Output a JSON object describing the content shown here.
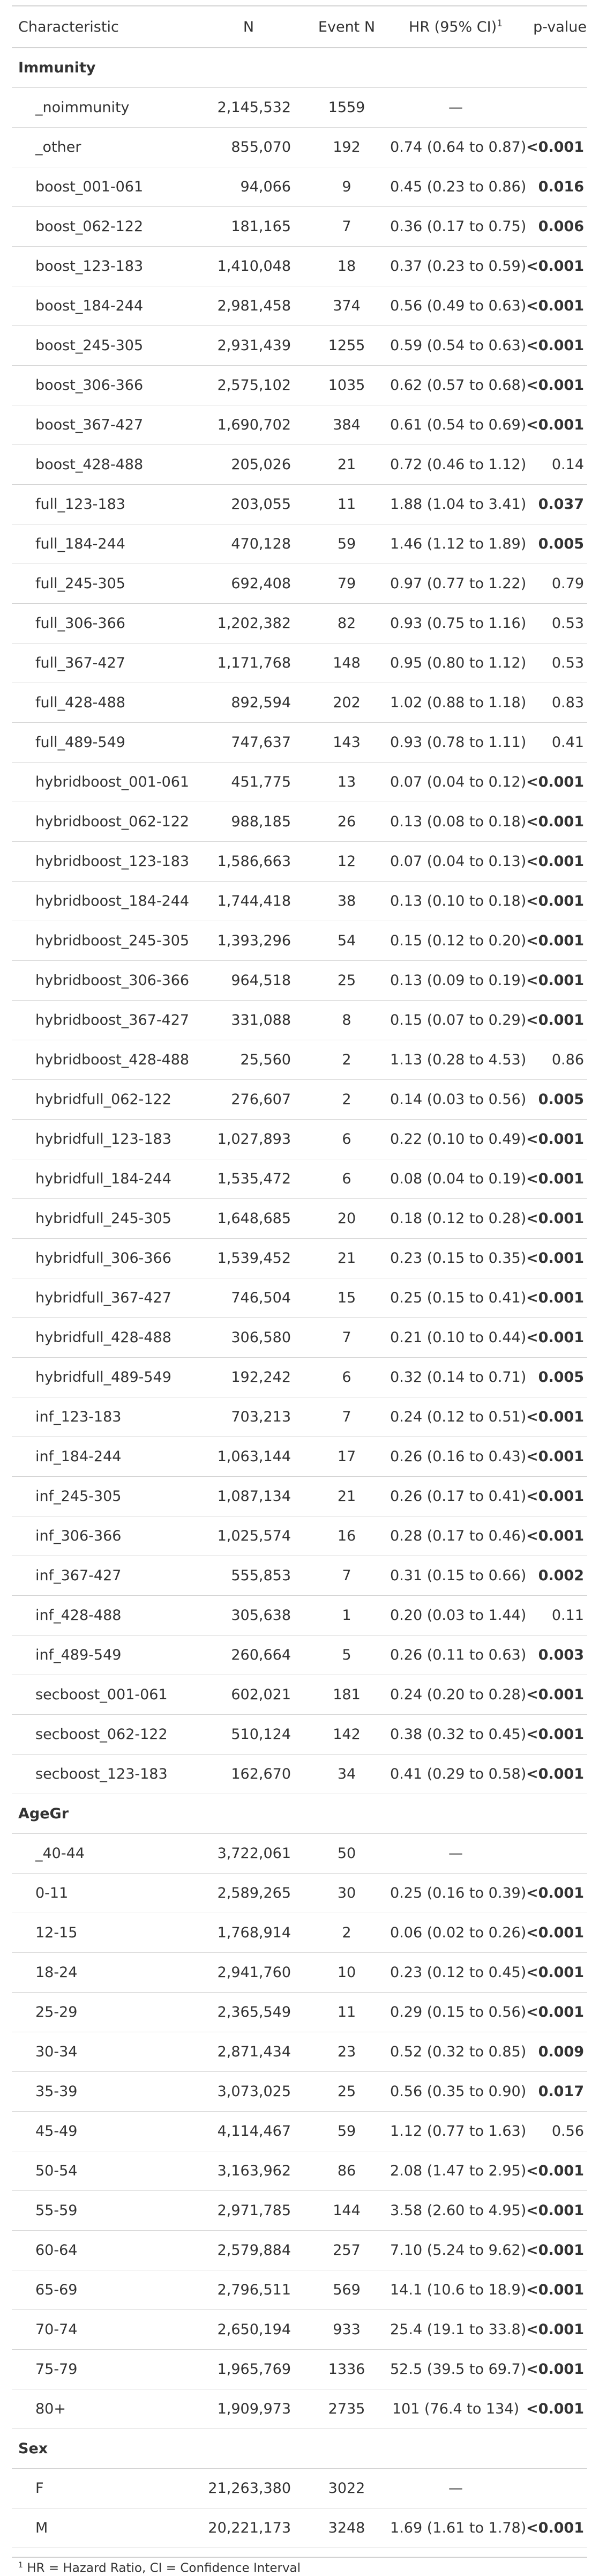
{
  "headers": {
    "characteristic": "Characteristic",
    "n": "N",
    "event_n": "Event N",
    "hr_ci": "HR (95% CI)",
    "hr_ci_mark": "1",
    "p_value": "p-value"
  },
  "groups": [
    {
      "label": "Immunity",
      "rows": [
        {
          "level": "_noimmunity",
          "n": "2,145,532",
          "events": "1559",
          "hr": "—",
          "p": "",
          "sig": false
        },
        {
          "level": "_other",
          "n": "855,070",
          "events": "192",
          "hr": "0.74 (0.64 to 0.87)",
          "p": "<0.001",
          "sig": true
        },
        {
          "level": "boost_001-061",
          "n": "94,066",
          "events": "9",
          "hr": "0.45 (0.23 to 0.86)",
          "p": "0.016",
          "sig": true
        },
        {
          "level": "boost_062-122",
          "n": "181,165",
          "events": "7",
          "hr": "0.36 (0.17 to 0.75)",
          "p": "0.006",
          "sig": true
        },
        {
          "level": "boost_123-183",
          "n": "1,410,048",
          "events": "18",
          "hr": "0.37 (0.23 to 0.59)",
          "p": "<0.001",
          "sig": true
        },
        {
          "level": "boost_184-244",
          "n": "2,981,458",
          "events": "374",
          "hr": "0.56 (0.49 to 0.63)",
          "p": "<0.001",
          "sig": true
        },
        {
          "level": "boost_245-305",
          "n": "2,931,439",
          "events": "1255",
          "hr": "0.59 (0.54 to 0.63)",
          "p": "<0.001",
          "sig": true
        },
        {
          "level": "boost_306-366",
          "n": "2,575,102",
          "events": "1035",
          "hr": "0.62 (0.57 to 0.68)",
          "p": "<0.001",
          "sig": true
        },
        {
          "level": "boost_367-427",
          "n": "1,690,702",
          "events": "384",
          "hr": "0.61 (0.54 to 0.69)",
          "p": "<0.001",
          "sig": true
        },
        {
          "level": "boost_428-488",
          "n": "205,026",
          "events": "21",
          "hr": "0.72 (0.46 to 1.12)",
          "p": "0.14",
          "sig": false
        },
        {
          "level": "full_123-183",
          "n": "203,055",
          "events": "11",
          "hr": "1.88 (1.04 to 3.41)",
          "p": "0.037",
          "sig": true
        },
        {
          "level": "full_184-244",
          "n": "470,128",
          "events": "59",
          "hr": "1.46 (1.12 to 1.89)",
          "p": "0.005",
          "sig": true
        },
        {
          "level": "full_245-305",
          "n": "692,408",
          "events": "79",
          "hr": "0.97 (0.77 to 1.22)",
          "p": "0.79",
          "sig": false
        },
        {
          "level": "full_306-366",
          "n": "1,202,382",
          "events": "82",
          "hr": "0.93 (0.75 to 1.16)",
          "p": "0.53",
          "sig": false
        },
        {
          "level": "full_367-427",
          "n": "1,171,768",
          "events": "148",
          "hr": "0.95 (0.80 to 1.12)",
          "p": "0.53",
          "sig": false
        },
        {
          "level": "full_428-488",
          "n": "892,594",
          "events": "202",
          "hr": "1.02 (0.88 to 1.18)",
          "p": "0.83",
          "sig": false
        },
        {
          "level": "full_489-549",
          "n": "747,637",
          "events": "143",
          "hr": "0.93 (0.78 to 1.11)",
          "p": "0.41",
          "sig": false
        },
        {
          "level": "hybridboost_001-061",
          "n": "451,775",
          "events": "13",
          "hr": "0.07 (0.04 to 0.12)",
          "p": "<0.001",
          "sig": true
        },
        {
          "level": "hybridboost_062-122",
          "n": "988,185",
          "events": "26",
          "hr": "0.13 (0.08 to 0.18)",
          "p": "<0.001",
          "sig": true
        },
        {
          "level": "hybridboost_123-183",
          "n": "1,586,663",
          "events": "12",
          "hr": "0.07 (0.04 to 0.13)",
          "p": "<0.001",
          "sig": true
        },
        {
          "level": "hybridboost_184-244",
          "n": "1,744,418",
          "events": "38",
          "hr": "0.13 (0.10 to 0.18)",
          "p": "<0.001",
          "sig": true
        },
        {
          "level": "hybridboost_245-305",
          "n": "1,393,296",
          "events": "54",
          "hr": "0.15 (0.12 to 0.20)",
          "p": "<0.001",
          "sig": true
        },
        {
          "level": "hybridboost_306-366",
          "n": "964,518",
          "events": "25",
          "hr": "0.13 (0.09 to 0.19)",
          "p": "<0.001",
          "sig": true
        },
        {
          "level": "hybridboost_367-427",
          "n": "331,088",
          "events": "8",
          "hr": "0.15 (0.07 to 0.29)",
          "p": "<0.001",
          "sig": true
        },
        {
          "level": "hybridboost_428-488",
          "n": "25,560",
          "events": "2",
          "hr": "1.13 (0.28 to 4.53)",
          "p": "0.86",
          "sig": false
        },
        {
          "level": "hybridfull_062-122",
          "n": "276,607",
          "events": "2",
          "hr": "0.14 (0.03 to 0.56)",
          "p": "0.005",
          "sig": true
        },
        {
          "level": "hybridfull_123-183",
          "n": "1,027,893",
          "events": "6",
          "hr": "0.22 (0.10 to 0.49)",
          "p": "<0.001",
          "sig": true
        },
        {
          "level": "hybridfull_184-244",
          "n": "1,535,472",
          "events": "6",
          "hr": "0.08 (0.04 to 0.19)",
          "p": "<0.001",
          "sig": true
        },
        {
          "level": "hybridfull_245-305",
          "n": "1,648,685",
          "events": "20",
          "hr": "0.18 (0.12 to 0.28)",
          "p": "<0.001",
          "sig": true
        },
        {
          "level": "hybridfull_306-366",
          "n": "1,539,452",
          "events": "21",
          "hr": "0.23 (0.15 to 0.35)",
          "p": "<0.001",
          "sig": true
        },
        {
          "level": "hybridfull_367-427",
          "n": "746,504",
          "events": "15",
          "hr": "0.25 (0.15 to 0.41)",
          "p": "<0.001",
          "sig": true
        },
        {
          "level": "hybridfull_428-488",
          "n": "306,580",
          "events": "7",
          "hr": "0.21 (0.10 to 0.44)",
          "p": "<0.001",
          "sig": true
        },
        {
          "level": "hybridfull_489-549",
          "n": "192,242",
          "events": "6",
          "hr": "0.32 (0.14 to 0.71)",
          "p": "0.005",
          "sig": true
        },
        {
          "level": "inf_123-183",
          "n": "703,213",
          "events": "7",
          "hr": "0.24 (0.12 to 0.51)",
          "p": "<0.001",
          "sig": true
        },
        {
          "level": "inf_184-244",
          "n": "1,063,144",
          "events": "17",
          "hr": "0.26 (0.16 to 0.43)",
          "p": "<0.001",
          "sig": true
        },
        {
          "level": "inf_245-305",
          "n": "1,087,134",
          "events": "21",
          "hr": "0.26 (0.17 to 0.41)",
          "p": "<0.001",
          "sig": true
        },
        {
          "level": "inf_306-366",
          "n": "1,025,574",
          "events": "16",
          "hr": "0.28 (0.17 to 0.46)",
          "p": "<0.001",
          "sig": true
        },
        {
          "level": "inf_367-427",
          "n": "555,853",
          "events": "7",
          "hr": "0.31 (0.15 to 0.66)",
          "p": "0.002",
          "sig": true
        },
        {
          "level": "inf_428-488",
          "n": "305,638",
          "events": "1",
          "hr": "0.20 (0.03 to 1.44)",
          "p": "0.11",
          "sig": false
        },
        {
          "level": "inf_489-549",
          "n": "260,664",
          "events": "5",
          "hr": "0.26 (0.11 to 0.63)",
          "p": "0.003",
          "sig": true
        },
        {
          "level": "secboost_001-061",
          "n": "602,021",
          "events": "181",
          "hr": "0.24 (0.20 to 0.28)",
          "p": "<0.001",
          "sig": true
        },
        {
          "level": "secboost_062-122",
          "n": "510,124",
          "events": "142",
          "hr": "0.38 (0.32 to 0.45)",
          "p": "<0.001",
          "sig": true
        },
        {
          "level": "secboost_123-183",
          "n": "162,670",
          "events": "34",
          "hr": "0.41 (0.29 to 0.58)",
          "p": "<0.001",
          "sig": true
        }
      ]
    },
    {
      "label": "AgeGr",
      "rows": [
        {
          "level": "_40-44",
          "n": "3,722,061",
          "events": "50",
          "hr": "—",
          "p": "",
          "sig": false
        },
        {
          "level": "0-11",
          "n": "2,589,265",
          "events": "30",
          "hr": "0.25 (0.16 to 0.39)",
          "p": "<0.001",
          "sig": true
        },
        {
          "level": "12-15",
          "n": "1,768,914",
          "events": "2",
          "hr": "0.06 (0.02 to 0.26)",
          "p": "<0.001",
          "sig": true
        },
        {
          "level": "18-24",
          "n": "2,941,760",
          "events": "10",
          "hr": "0.23 (0.12 to 0.45)",
          "p": "<0.001",
          "sig": true
        },
        {
          "level": "25-29",
          "n": "2,365,549",
          "events": "11",
          "hr": "0.29 (0.15 to 0.56)",
          "p": "<0.001",
          "sig": true
        },
        {
          "level": "30-34",
          "n": "2,871,434",
          "events": "23",
          "hr": "0.52 (0.32 to 0.85)",
          "p": "0.009",
          "sig": true
        },
        {
          "level": "35-39",
          "n": "3,073,025",
          "events": "25",
          "hr": "0.56 (0.35 to 0.90)",
          "p": "0.017",
          "sig": true
        },
        {
          "level": "45-49",
          "n": "4,114,467",
          "events": "59",
          "hr": "1.12 (0.77 to 1.63)",
          "p": "0.56",
          "sig": false
        },
        {
          "level": "50-54",
          "n": "3,163,962",
          "events": "86",
          "hr": "2.08 (1.47 to 2.95)",
          "p": "<0.001",
          "sig": true
        },
        {
          "level": "55-59",
          "n": "2,971,785",
          "events": "144",
          "hr": "3.58 (2.60 to 4.95)",
          "p": "<0.001",
          "sig": true
        },
        {
          "level": "60-64",
          "n": "2,579,884",
          "events": "257",
          "hr": "7.10 (5.24 to 9.62)",
          "p": "<0.001",
          "sig": true
        },
        {
          "level": "65-69",
          "n": "2,796,511",
          "events": "569",
          "hr": "14.1 (10.6 to 18.9)",
          "p": "<0.001",
          "sig": true
        },
        {
          "level": "70-74",
          "n": "2,650,194",
          "events": "933",
          "hr": "25.4 (19.1 to 33.8)",
          "p": "<0.001",
          "sig": true
        },
        {
          "level": "75-79",
          "n": "1,965,769",
          "events": "1336",
          "hr": "52.5 (39.5 to 69.7)",
          "p": "<0.001",
          "sig": true
        },
        {
          "level": "80+",
          "n": "1,909,973",
          "events": "2735",
          "hr": "101 (76.4 to 134)",
          "p": "<0.001",
          "sig": true
        }
      ]
    },
    {
      "label": "Sex",
      "rows": [
        {
          "level": "F",
          "n": "21,263,380",
          "events": "3022",
          "hr": "—",
          "p": "",
          "sig": false
        },
        {
          "level": "M",
          "n": "20,221,173",
          "events": "3248",
          "hr": "1.69 (1.61 to 1.78)",
          "p": "<0.001",
          "sig": true
        }
      ]
    }
  ],
  "footnote": {
    "mark": "1",
    "text": "HR = Hazard Ratio, CI = Confidence Interval"
  }
}
